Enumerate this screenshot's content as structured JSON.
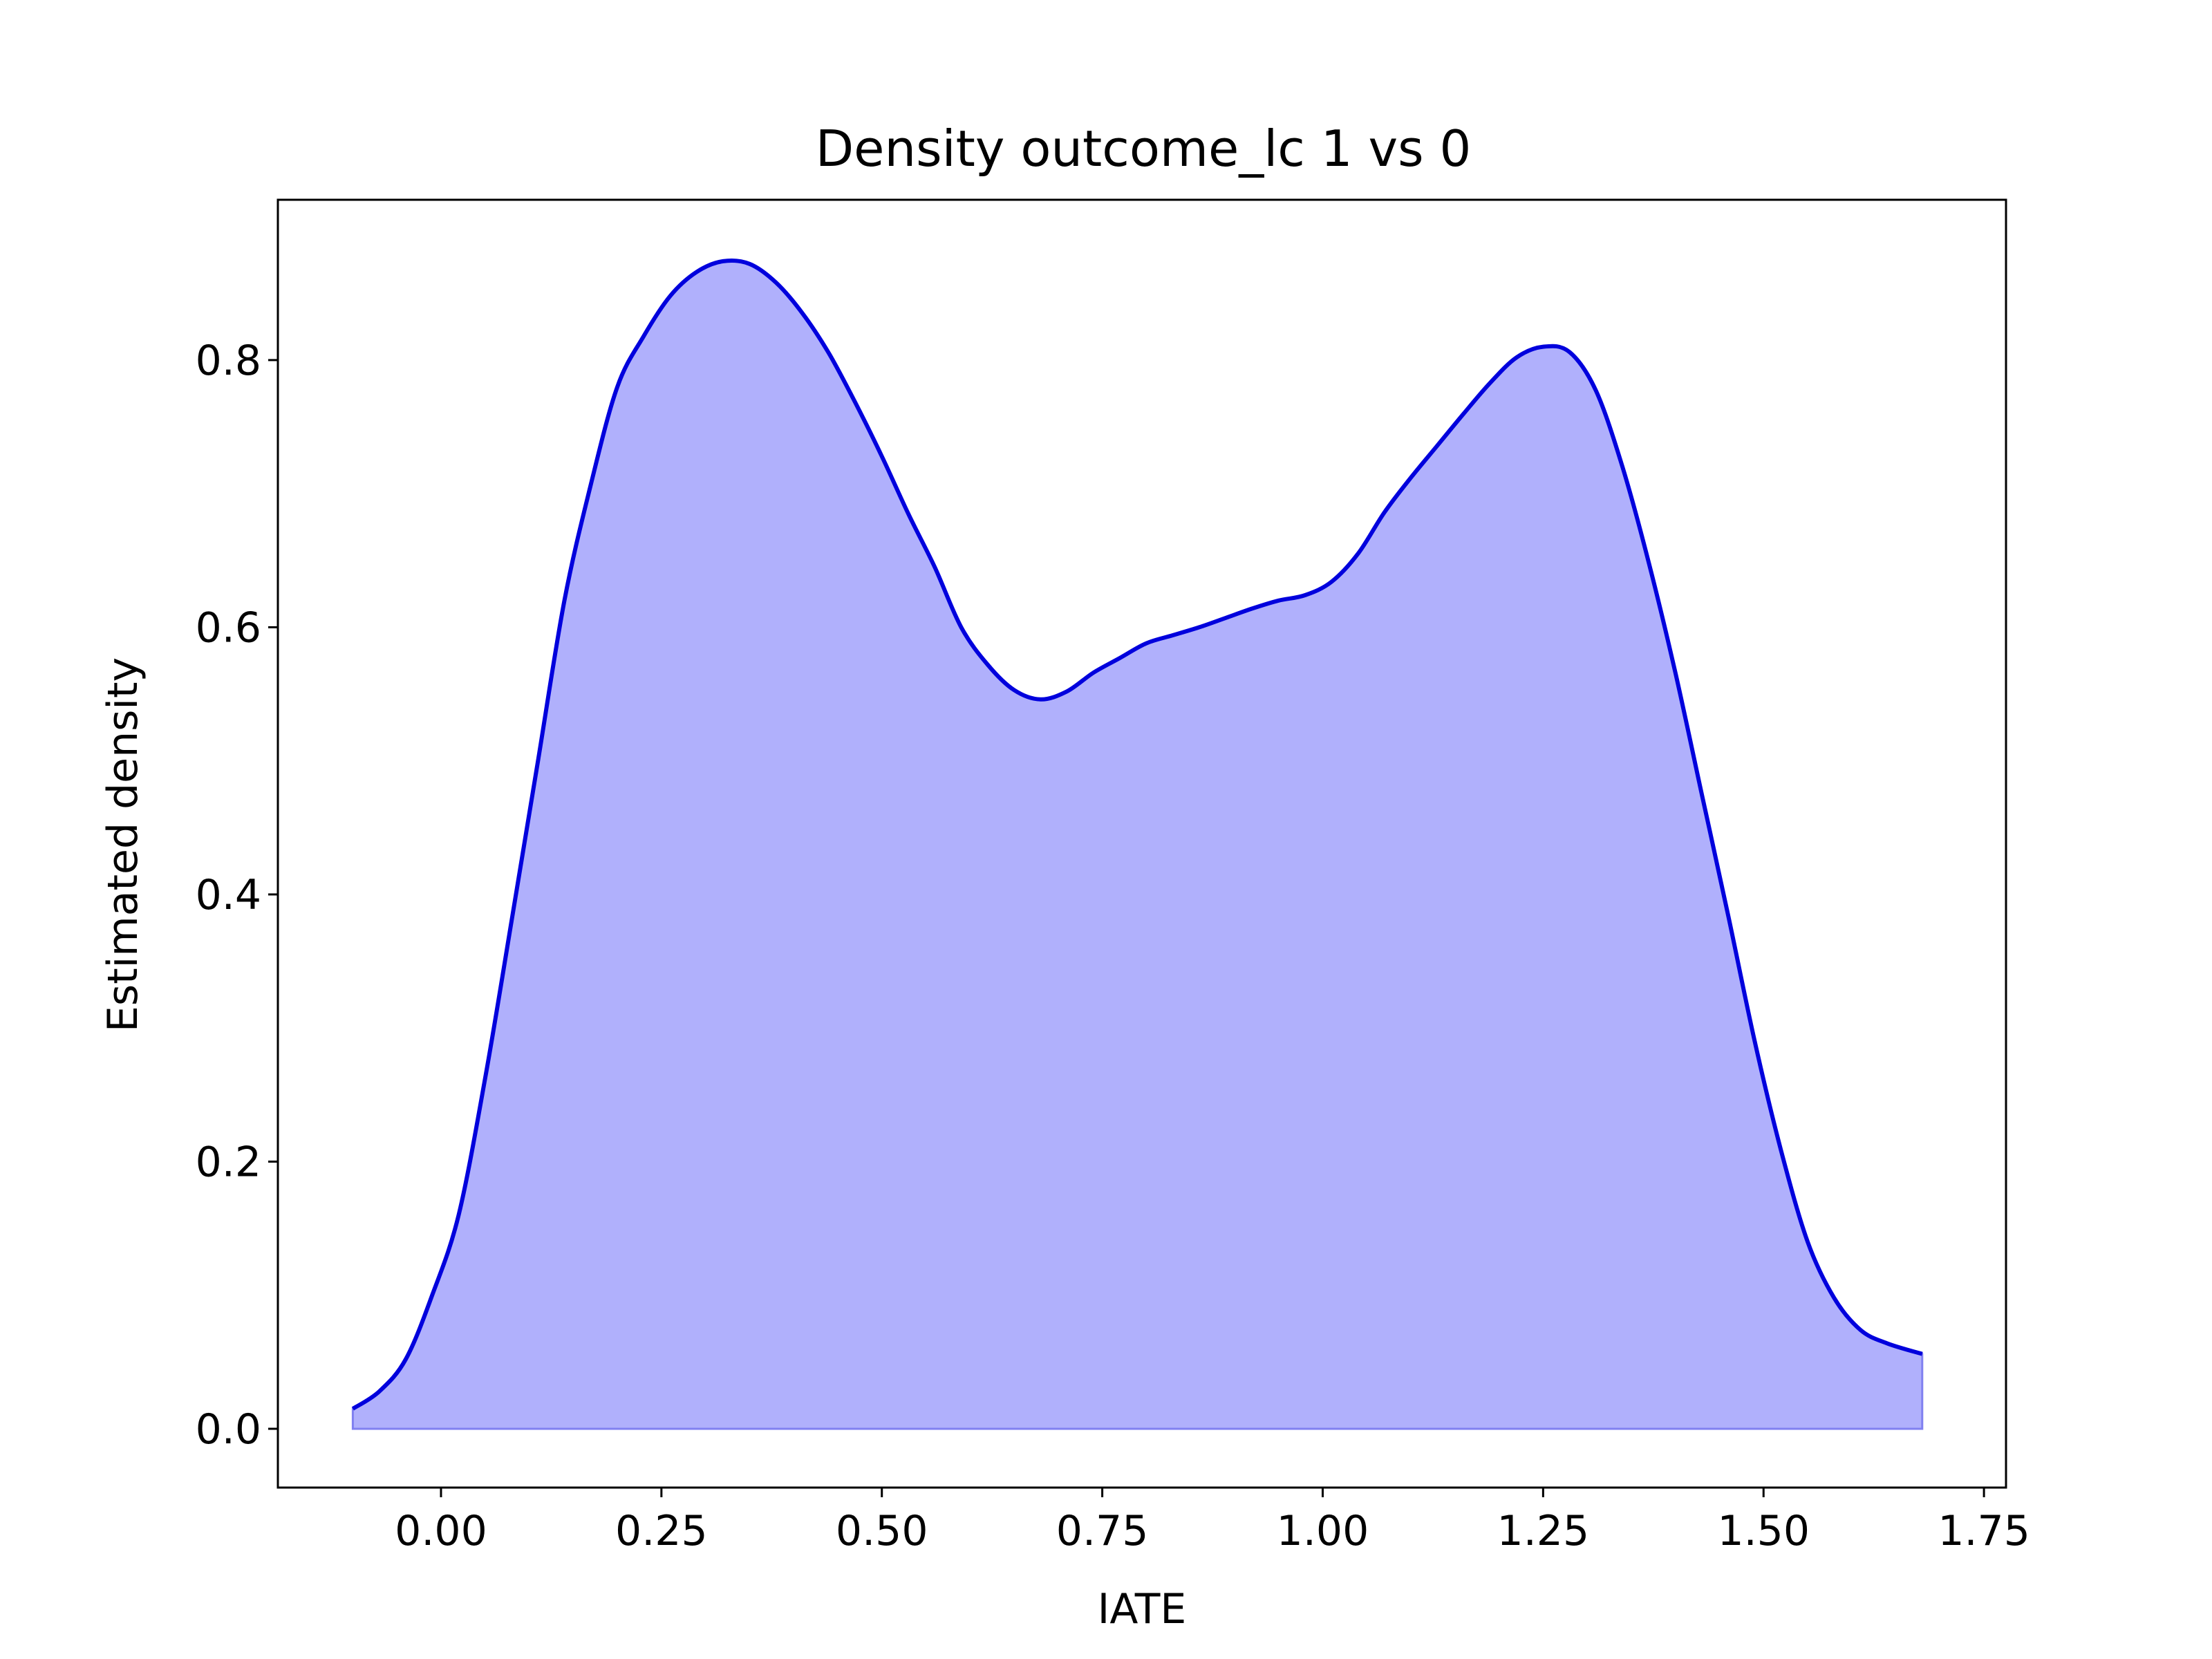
{
  "chart_data": {
    "type": "area",
    "title": "Density outcome_lc 1 vs 0",
    "xlabel": "IATE",
    "ylabel": "Estimated density",
    "xlim": [
      -0.185,
      1.775
    ],
    "ylim": [
      -0.044,
      0.92
    ],
    "xticks": [
      0.0,
      0.25,
      0.5,
      0.75,
      1.0,
      1.25,
      1.5,
      1.75
    ],
    "xtick_labels": [
      "0.00",
      "0.25",
      "0.50",
      "0.75",
      "1.00",
      "1.25",
      "1.50",
      "1.75"
    ],
    "yticks": [
      0.0,
      0.2,
      0.4,
      0.6,
      0.8
    ],
    "ytick_labels": [
      "0.0",
      "0.2",
      "0.4",
      "0.6",
      "0.8"
    ],
    "grid": false,
    "line_color": "#0000dd",
    "fill_color": "#b0b0fc",
    "series": [
      {
        "x": [
          -0.1,
          -0.07,
          -0.04,
          -0.01,
          0.02,
          0.05,
          0.08,
          0.11,
          0.14,
          0.17,
          0.2,
          0.23,
          0.26,
          0.29,
          0.32,
          0.35,
          0.38,
          0.41,
          0.44,
          0.47,
          0.5,
          0.53,
          0.56,
          0.59,
          0.62,
          0.65,
          0.68,
          0.71,
          0.74,
          0.77,
          0.8,
          0.83,
          0.86,
          0.89,
          0.92,
          0.95,
          0.98,
          1.01,
          1.04,
          1.07,
          1.1,
          1.13,
          1.16,
          1.19,
          1.22,
          1.25,
          1.28,
          1.31,
          1.34,
          1.37,
          1.4,
          1.43,
          1.46,
          1.49,
          1.52,
          1.55,
          1.58,
          1.61,
          1.64,
          1.68
        ],
        "y": [
          0.015,
          0.028,
          0.052,
          0.1,
          0.16,
          0.262,
          0.38,
          0.5,
          0.62,
          0.707,
          0.78,
          0.818,
          0.848,
          0.866,
          0.874,
          0.872,
          0.858,
          0.835,
          0.805,
          0.768,
          0.728,
          0.685,
          0.645,
          0.6,
          0.572,
          0.553,
          0.546,
          0.552,
          0.566,
          0.577,
          0.588,
          0.594,
          0.6,
          0.607,
          0.614,
          0.62,
          0.624,
          0.634,
          0.655,
          0.686,
          0.712,
          0.736,
          0.76,
          0.783,
          0.802,
          0.81,
          0.806,
          0.777,
          0.72,
          0.648,
          0.566,
          0.475,
          0.384,
          0.29,
          0.208,
          0.14,
          0.098,
          0.074,
          0.064,
          0.056
        ]
      }
    ]
  }
}
